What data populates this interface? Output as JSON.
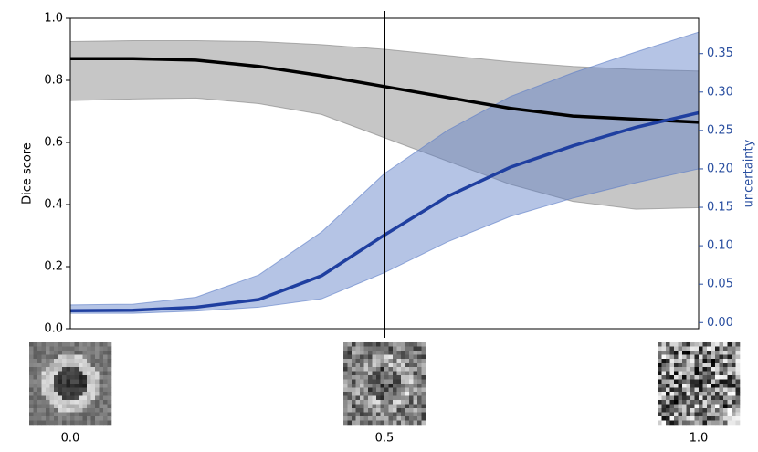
{
  "chart_data": {
    "type": "line",
    "x": [
      0,
      0.1,
      0.2,
      0.3,
      0.4,
      0.5,
      0.6,
      0.7,
      0.8,
      0.9,
      1.0
    ],
    "series": [
      {
        "color": "#000000",
        "band_color": "#808080",
        "values": [
          0.87,
          0.87,
          0.865,
          0.845,
          0.815,
          0.78,
          0.745,
          0.71,
          0.685,
          0.675,
          0.665
        ],
        "lower": [
          0.735,
          0.74,
          0.743,
          0.725,
          0.69,
          0.615,
          0.54,
          0.465,
          0.41,
          0.385,
          0.39
        ],
        "upper": [
          0.925,
          0.928,
          0.928,
          0.925,
          0.915,
          0.9,
          0.88,
          0.86,
          0.845,
          0.835,
          0.83
        ]
      },
      {
        "color": "#1f3fa0",
        "band_color": "#5a7cc6",
        "axis": "y2",
        "values": [
          0.0155,
          0.016,
          0.02,
          0.03,
          0.061,
          0.114,
          0.164,
          0.202,
          0.23,
          0.254,
          0.273
        ],
        "lower": [
          0.012,
          0.012,
          0.015,
          0.02,
          0.031,
          0.065,
          0.105,
          0.138,
          0.162,
          0.182,
          0.2
        ],
        "upper": [
          0.023,
          0.024,
          0.033,
          0.062,
          0.118,
          0.194,
          0.25,
          0.294,
          0.325,
          0.352,
          0.378
        ]
      }
    ],
    "xlim": [
      0,
      1
    ],
    "xticks": [
      {
        "value": 0,
        "label": "0.0"
      },
      0.5,
      {
        "value": 1,
        "label": "1.0"
      }
    ],
    "vline": 0.5,
    "ylabel": "Dice score",
    "ylim": [
      0,
      1
    ],
    "yticks": [
      {
        "value": 0,
        "label": "0.0"
      },
      0.2,
      0.4,
      0.6,
      0.8,
      {
        "value": 1,
        "label": "1.0"
      }
    ],
    "y2label": "uncertainty",
    "y2lim": [
      -0.008,
      0.396
    ],
    "y2ticks": [
      {
        "value": 0,
        "label": "0.00"
      },
      0.05,
      {
        "value": 0.1,
        "label": "0.10"
      },
      0.15,
      {
        "value": 0.2,
        "label": "0.20"
      },
      0.25,
      {
        "value": 0.3,
        "label": "0.30"
      },
      0.35
    ]
  }
}
